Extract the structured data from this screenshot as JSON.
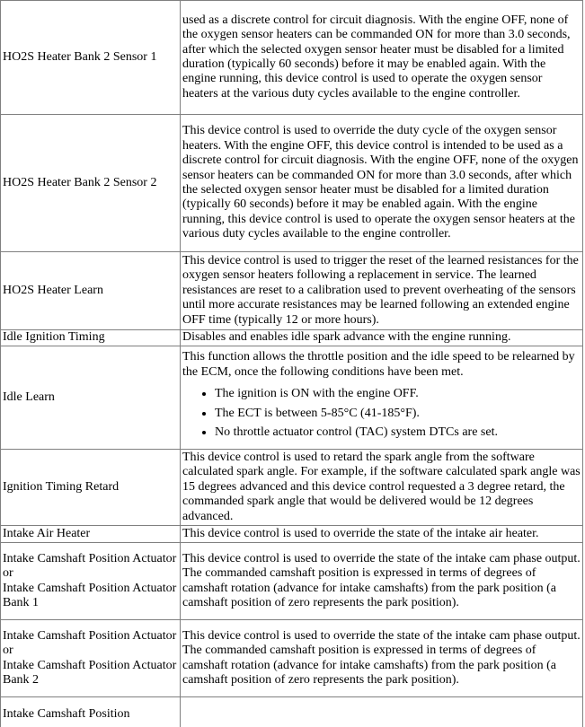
{
  "table": {
    "rows": [
      {
        "label": [
          "HO2S Heater Bank 2 Sensor 1"
        ],
        "text": "used as a discrete control for circuit diagnosis. With the engine OFF, none of the oxygen sensor heaters can be commanded ON for more than 3.0 seconds, after which the selected oxygen sensor heater must be disabled for a limited duration (typically 60 seconds) before it may be enabled again. With the engine running, this device control is used to operate the oxygen sensor heaters at the various duty cycles available to the engine controller."
      },
      {
        "label": [
          "HO2S Heater Bank 2 Sensor 2"
        ],
        "text": "This device control is used to override the duty cycle of the oxygen sensor heaters. With the engine OFF, this device control is intended to be used as a discrete control for circuit diagnosis. With the engine OFF, none of the oxygen sensor heaters can be commanded ON for more than 3.0 seconds, after which the selected oxygen sensor heater must be disabled for a limited duration (typically 60 seconds) before it may be enabled again. With the engine running, this device control is used to operate the oxygen sensor heaters at the various duty cycles available to the engine controller."
      },
      {
        "label": [
          "HO2S Heater Learn"
        ],
        "text": "This device control is used to trigger the reset of the learned resistances for the oxygen sensor heaters following a replacement in service. The learned resistances are reset to a calibration used to prevent overheating of the sensors until more accurate resistances may be learned following an extended engine OFF time (typically 12 or more hours)."
      },
      {
        "label": [
          "Idle Ignition Timing"
        ],
        "text": "Disables and enables idle spark advance with the engine running."
      },
      {
        "label": [
          "Idle Learn"
        ],
        "text": "This function allows the throttle position and the idle speed to be relearned by the ECM, once the following conditions have been met.",
        "bullets": [
          "The ignition is ON with the engine OFF.",
          "The ECT is between 5-85°C (41-185°F).",
          "No throttle actuator control (TAC) system DTCs are set."
        ]
      },
      {
        "label": [
          "Ignition Timing Retard"
        ],
        "text": "This device control is used to retard the spark angle from the software calculated spark angle. For example, if the software calculated spark angle was 15 degrees advanced and this device control requested a 3 degree retard, the commanded spark angle that would be delivered would be 12 degrees advanced."
      },
      {
        "label": [
          "Intake Air Heater"
        ],
        "text": "This device control is used to override the state of the intake air heater."
      },
      {
        "label": [
          "Intake Camshaft Position Actuator",
          "or",
          "Intake Camshaft Position Actuator Bank 1"
        ],
        "text": "This device control is used to override the state of the intake cam phase output. The commanded camshaft position is expressed in terms of degrees of camshaft rotation (advance for intake camshafts) from the park position (a camshaft position of zero represents the park position)."
      },
      {
        "label": [
          "Intake Camshaft Position Actuator",
          "or",
          "Intake Camshaft Position Actuator Bank 2"
        ],
        "text": "This device control is used to override the state of the intake cam phase output. The commanded camshaft position is expressed in terms of degrees of camshaft rotation (advance for intake camshafts) from the park position (a camshaft position of zero represents the park position)."
      },
      {
        "label": [
          "Intake Camshaft Position"
        ]
      }
    ]
  }
}
